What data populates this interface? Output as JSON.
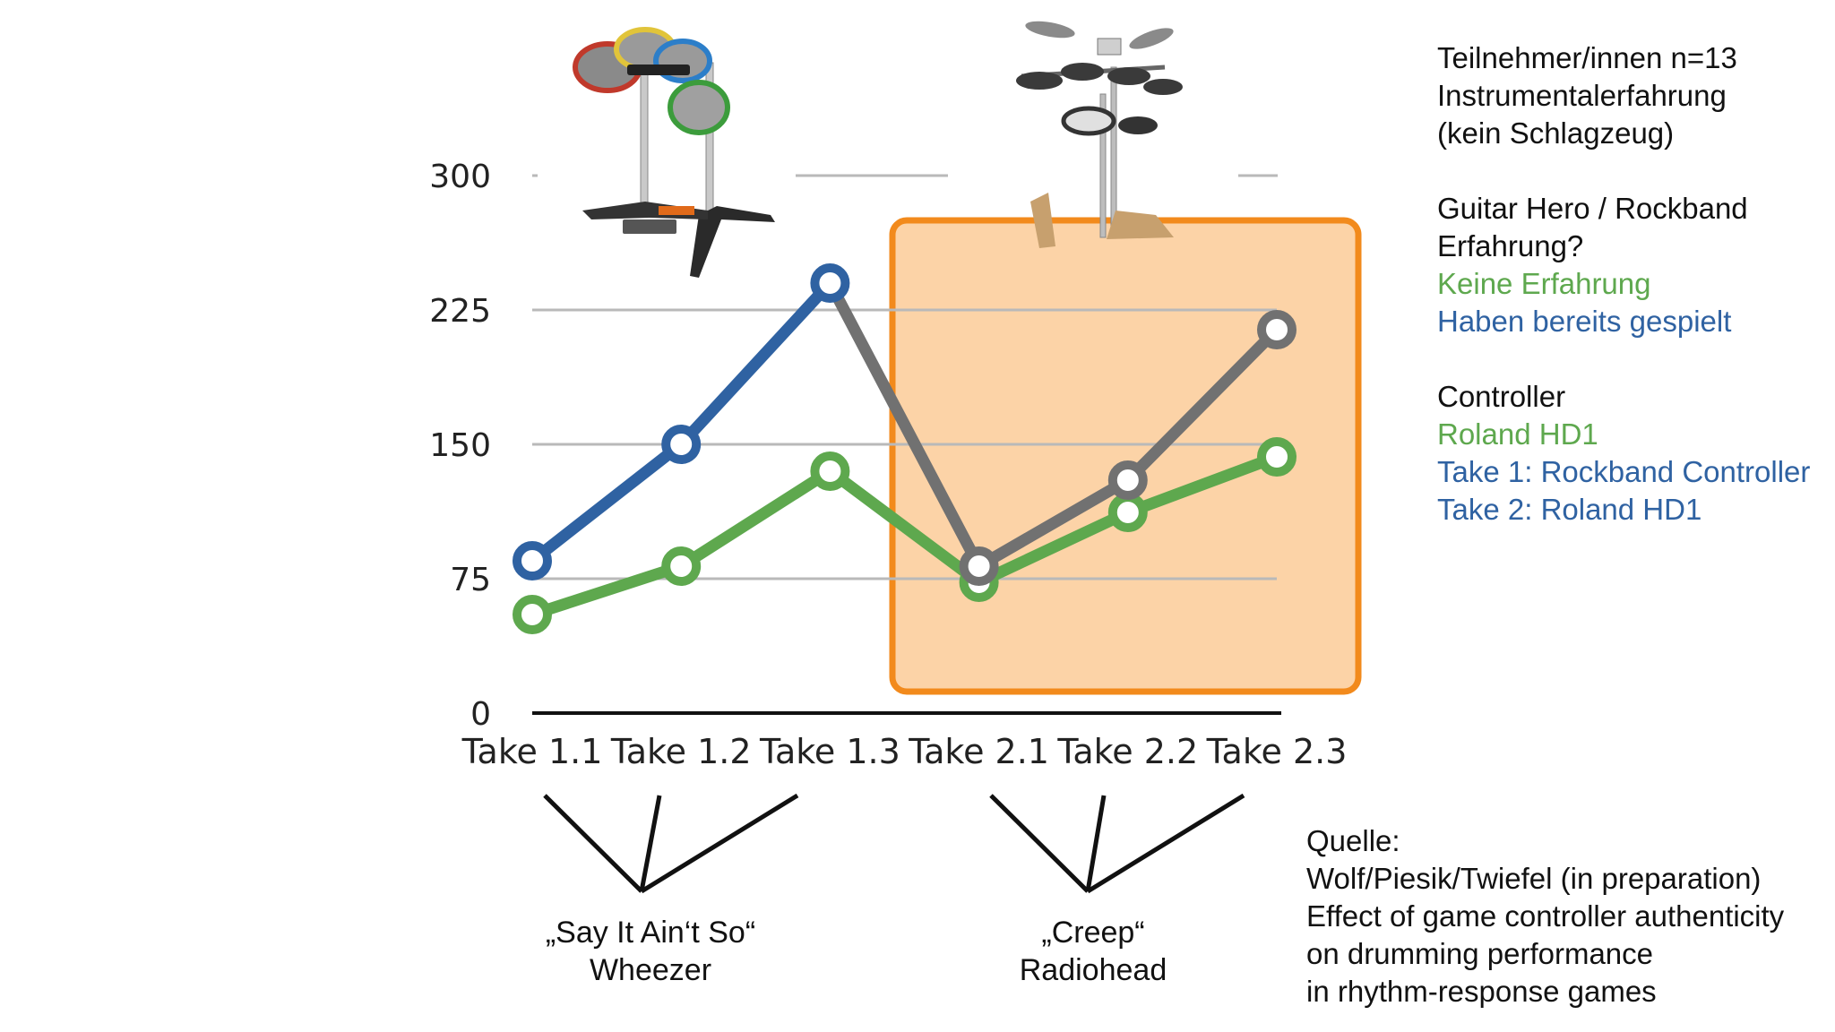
{
  "colors": {
    "green": "#5ea84e",
    "blue": "#2f62a2",
    "gray": "#717171",
    "orange_border": "#f28a1c",
    "orange_fill": "#fcd3a7",
    "grid": "#b9b9b9",
    "axis": "#111111"
  },
  "chart_data": {
    "type": "line",
    "categories": [
      "Take 1.1",
      "Take 1.2",
      "Take 1.3",
      "Take 2.1",
      "Take 2.2",
      "Take 2.3"
    ],
    "yticks": [
      "0",
      "75",
      "150",
      "225",
      "300"
    ],
    "ylim": [
      0,
      300
    ],
    "grid": "horizontal",
    "series": [
      {
        "color_key": "green",
        "values": [
          55,
          82,
          135,
          73,
          112,
          143
        ]
      },
      {
        "color_key": "blue",
        "values": [
          85,
          150,
          240,
          null,
          null,
          null
        ]
      },
      {
        "color_key": "gray",
        "values": [
          null,
          null,
          240,
          82,
          130,
          214
        ]
      }
    ],
    "highlight": {
      "from_category": "Take 2.1",
      "to_category": "Take 2.3",
      "style": "orange box"
    }
  },
  "icons": {
    "left_controller": "rockband-drum-controller-icon",
    "right_controller": "roland-electronic-drum-kit-icon"
  },
  "legend": {
    "lines": [
      {
        "text": "Teilnehmer/innen n=13",
        "color": "#111111"
      },
      {
        "text": "Instrumentalerfahrung",
        "color": "#111111"
      },
      {
        "text": "(kein Schlagzeug)",
        "color": "#111111"
      },
      {
        "text": "",
        "color": "#111111"
      },
      {
        "text": "Guitar Hero / Rockband",
        "color": "#111111"
      },
      {
        "text": "Erfahrung?",
        "color": "#111111"
      },
      {
        "text": "Keine Erfahrung",
        "color": "#5ea84e"
      },
      {
        "text": "Haben bereits gespielt",
        "color": "#2f62a2"
      },
      {
        "text": "",
        "color": "#111111"
      },
      {
        "text": "Controller",
        "color": "#111111"
      },
      {
        "text": "Roland HD1",
        "color": "#5ea84e"
      },
      {
        "text": "Take 1: Rockband Controller",
        "color": "#2f62a2"
      },
      {
        "text": "Take 2: Roland HD1",
        "color": "#2f62a2"
      }
    ]
  },
  "songs": [
    {
      "title": "„Say It Ain‘t So“",
      "artist": "Wheezer"
    },
    {
      "title": "„Creep“",
      "artist": "Radiohead"
    }
  ],
  "source": {
    "lines": [
      "Quelle:",
      "Wolf/Piesik/Twiefel (in preparation)",
      "Effect of game controller authenticity",
      "on drumming performance",
      "in rhythm-response games"
    ]
  }
}
